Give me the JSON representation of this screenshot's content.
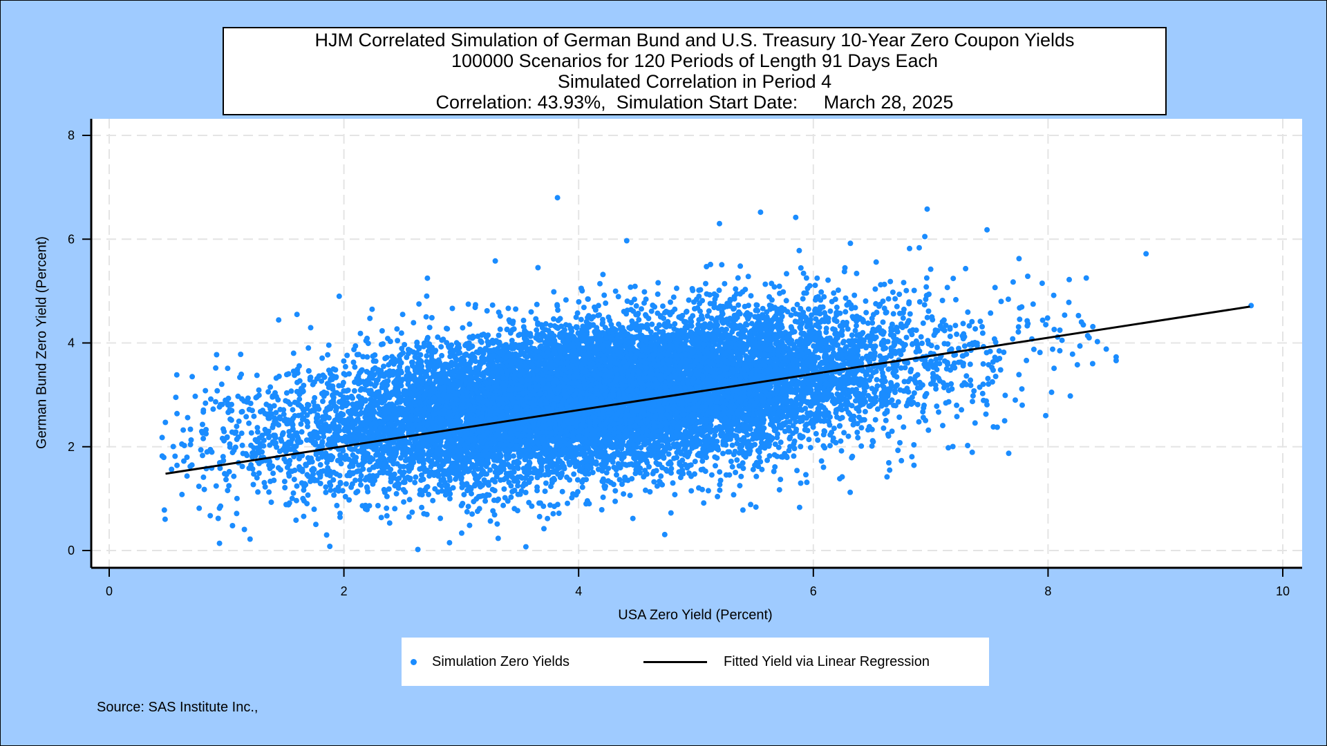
{
  "colors": {
    "background": "#9fcbff",
    "plot_background": "#ffffff",
    "points": "#1a8cff",
    "fit_line": "#000000",
    "grid": "#e4e4e4"
  },
  "chart_data": {
    "type": "scatter",
    "title_lines": [
      "HJM Correlated Simulation of German Bund and U.S. Treasury 10-Year Zero Coupon Yields",
      "100000 Scenarios for 120 Periods of Length 91 Days Each",
      "Simulated Correlation in Period 4",
      "Correlation: 43.93%,  Simulation Start Date:     March 28, 2025"
    ],
    "xlabel": "USA Zero Yield (Percent)",
    "ylabel": "German Bund Zero Yield (Percent)",
    "xlim": [
      0,
      10
    ],
    "ylim": [
      0,
      8
    ],
    "x_ticks": [
      0,
      2,
      4,
      6,
      8,
      10
    ],
    "y_ticks": [
      0,
      2,
      4,
      6,
      8
    ],
    "grid": true,
    "legend_position": "bottom",
    "series": [
      {
        "name": "Simulation Zero Yields",
        "kind": "scatter",
        "cloud": {
          "x_mean": 4.2,
          "y_mean": 2.95,
          "x_sd": 1.28,
          "y_sd": 0.78,
          "correlation": 0.4393
        },
        "outliers": [
          [
            3.82,
            6.8
          ],
          [
            5.55,
            6.52
          ],
          [
            5.85,
            6.42
          ],
          [
            6.97,
            6.58
          ],
          [
            7.48,
            6.18
          ],
          [
            6.95,
            6.05
          ],
          [
            5.2,
            6.3
          ],
          [
            8.18,
            5.22
          ],
          [
            7.95,
            5.15
          ],
          [
            3.29,
            5.58
          ],
          [
            4.41,
            5.97
          ],
          [
            5.88,
            5.78
          ],
          [
            7.0,
            5.42
          ],
          [
            1.6,
            4.55
          ],
          [
            1.96,
            4.9
          ],
          [
            2.24,
            4.65
          ],
          [
            0.82,
            3.08
          ],
          [
            0.47,
            0.78
          ],
          [
            0.62,
            1.08
          ],
          [
            0.69,
            1.62
          ],
          [
            2.63,
            0.02
          ],
          [
            1.88,
            0.08
          ],
          [
            8.58,
            3.73
          ],
          [
            8.58,
            3.66
          ],
          [
            8.38,
            3.6
          ],
          [
            8.25,
            3.58
          ],
          [
            8.35,
            4.1
          ],
          [
            9.73,
            4.72
          ],
          [
            7.78,
            2.8
          ],
          [
            7.98,
            2.6
          ],
          [
            7.63,
            2.5
          ],
          [
            8.03,
            3.05
          ],
          [
            1.2,
            0.22
          ],
          [
            2.9,
            0.15
          ],
          [
            5.4,
            0.78
          ],
          [
            6.65,
            1.55
          ],
          [
            7.15,
            1.98
          ],
          [
            6.82,
            5.82
          ],
          [
            8.1,
            3.85
          ],
          [
            7.6,
            4.8
          ]
        ]
      },
      {
        "name": "Fitted Yield via Linear Regression",
        "kind": "line",
        "x": [
          0.48,
          9.72
        ],
        "y": [
          1.48,
          4.7
        ]
      }
    ],
    "source_note": "Source: SAS Institute Inc.,"
  }
}
